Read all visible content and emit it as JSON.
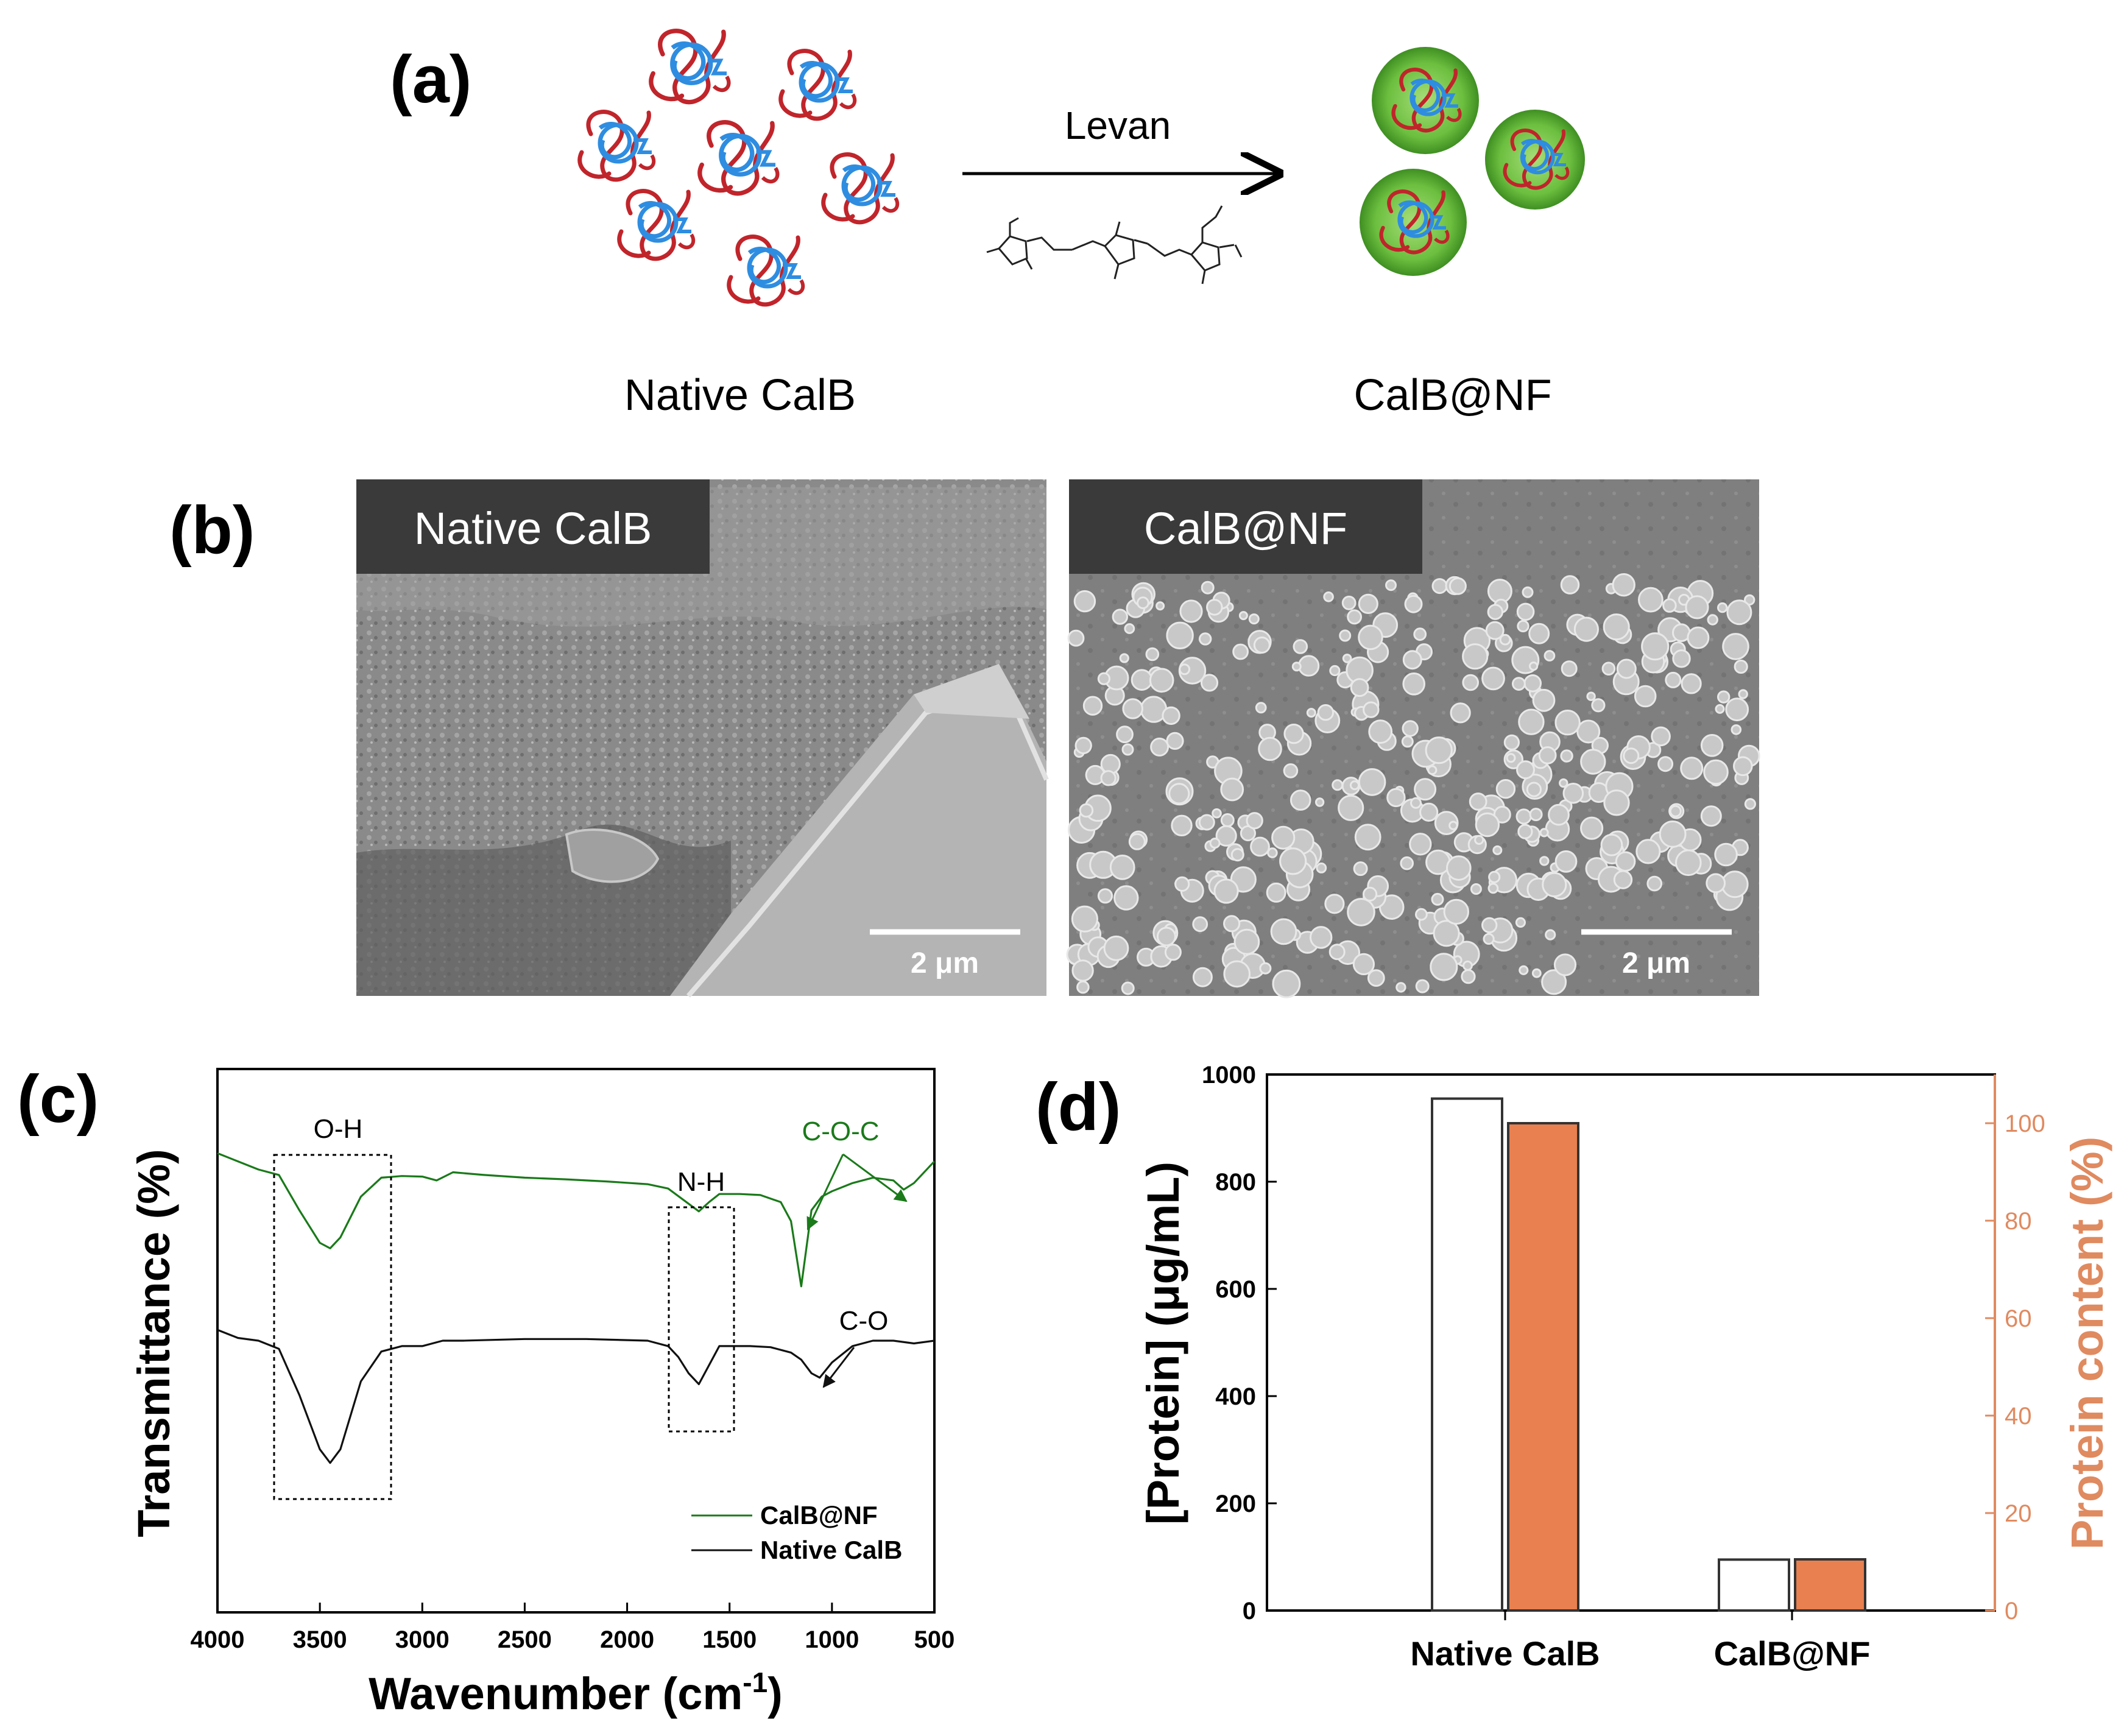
{
  "panels": {
    "a": {
      "letter": "(a)",
      "arrow_label": "Levan",
      "left_label": "Native CalB",
      "right_label": "CalB@NF"
    },
    "b": {
      "letter": "(b)",
      "left_tag": "Native CalB",
      "right_tag": "CalB@NF",
      "left_scalebar": "2 μm",
      "right_scalebar": "2 μm"
    },
    "c": {
      "letter": "(c)",
      "annotations": {
        "oh": "O-H",
        "nh": "N-H",
        "coc": "C-O-C",
        "co": "C-O"
      }
    },
    "d": {
      "letter": "(d)"
    }
  },
  "colors": {
    "calb_nf_line": "#1a7a1a",
    "native_line": "#111111",
    "protein_content_bar": "#e8804f",
    "right_axis": "#e08a60",
    "nanoflower_green": "#6cbf3f",
    "coil_red": "#c0252b",
    "coil_blue": "#2e8de0",
    "sem_tag_bg": "#3a3a3a"
  },
  "chart_data": [
    {
      "panel": "c",
      "type": "line",
      "xlabel": "Wavenumber (cm",
      "xlabel_sup": "-1",
      "xlabel_close": ")",
      "ylabel": "Transmittance (%)",
      "xlim": [
        4000,
        500
      ],
      "x_reversed": true,
      "xticks": [
        "4000",
        "3500",
        "3000",
        "2500",
        "2000",
        "1500",
        "1000",
        "500"
      ],
      "yticks_shown": false,
      "legend_position": "bottom-right",
      "series": [
        {
          "name": "CalB@NF",
          "color": "#1a7a1a",
          "x": [
            4000,
            3900,
            3800,
            3700,
            3600,
            3500,
            3450,
            3400,
            3300,
            3200,
            3100,
            3000,
            2930,
            2850,
            2700,
            2500,
            2300,
            2100,
            1900,
            1800,
            1700,
            1650,
            1600,
            1550,
            1450,
            1350,
            1250,
            1200,
            1150,
            1100,
            1050,
            1000,
            900,
            800,
            700,
            650,
            600,
            500
          ],
          "y": [
            0.845,
            0.83,
            0.815,
            0.805,
            0.74,
            0.68,
            0.67,
            0.69,
            0.765,
            0.8,
            0.803,
            0.802,
            0.795,
            0.81,
            0.805,
            0.8,
            0.797,
            0.793,
            0.788,
            0.78,
            0.752,
            0.738,
            0.755,
            0.77,
            0.77,
            0.768,
            0.755,
            0.72,
            0.6,
            0.74,
            0.765,
            0.775,
            0.79,
            0.8,
            0.795,
            0.778,
            0.79,
            0.83
          ]
        },
        {
          "name": "Native CalB",
          "color": "#111111",
          "x": [
            4000,
            3900,
            3800,
            3700,
            3600,
            3500,
            3450,
            3400,
            3300,
            3200,
            3100,
            3000,
            2900,
            2800,
            2500,
            2200,
            1900,
            1800,
            1750,
            1700,
            1650,
            1600,
            1550,
            1500,
            1400,
            1300,
            1200,
            1150,
            1100,
            1060,
            1000,
            900,
            800,
            700,
            600,
            500
          ],
          "y": [
            0.52,
            0.505,
            0.5,
            0.485,
            0.4,
            0.3,
            0.275,
            0.3,
            0.425,
            0.48,
            0.49,
            0.49,
            0.5,
            0.5,
            0.503,
            0.503,
            0.5,
            0.49,
            0.47,
            0.44,
            0.42,
            0.455,
            0.49,
            0.49,
            0.49,
            0.488,
            0.478,
            0.465,
            0.44,
            0.432,
            0.46,
            0.49,
            0.5,
            0.5,
            0.495,
            0.5
          ]
        }
      ]
    },
    {
      "panel": "d",
      "type": "bar",
      "categories": [
        "Native CalB",
        "CalB@NF"
      ],
      "ylabel": "[Protein] (μg/mL)",
      "ylim": [
        0,
        1000
      ],
      "yticks": [
        0,
        200,
        400,
        600,
        800,
        1000
      ],
      "y2label": "Protein content (%)",
      "y2lim": [
        0,
        110
      ],
      "y2ticks": [
        0,
        20,
        40,
        60,
        80,
        100
      ],
      "series": [
        {
          "axis": "left",
          "color": "#ffffff",
          "values": [
            955,
            95
          ]
        },
        {
          "axis": "right",
          "color": "#e8804f",
          "values": [
            100,
            10.5
          ]
        }
      ]
    }
  ]
}
